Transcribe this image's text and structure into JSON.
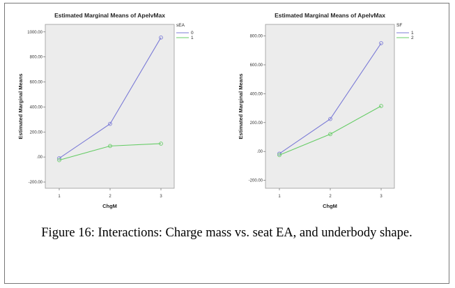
{
  "charts": [
    {
      "type": "line",
      "title": "Estimated Marginal Means of ApelvMax",
      "xlabel": "ChgM",
      "ylabel": "Estimated Marginal Means",
      "categories": [
        "1",
        "2",
        "3"
      ],
      "yticks": [
        "1000.00",
        "800.00",
        "600.00",
        "400.00",
        "200.00",
        ".00",
        "-200.00"
      ],
      "ylim": [
        -250,
        1060
      ],
      "legend_title": "sEA",
      "legend_position": "top-right",
      "grid": false,
      "series": [
        {
          "name": "0",
          "color": "#7b7bd6",
          "values": [
            -10,
            265,
            955
          ]
        },
        {
          "name": "1",
          "color": "#66cc66",
          "values": [
            -25,
            88,
            107
          ]
        }
      ]
    },
    {
      "type": "line",
      "title": "Estimated Marginal Means of ApelvMax",
      "xlabel": "ChgM",
      "ylabel": "Estimated Marginal Means",
      "categories": [
        "1",
        "2",
        "3"
      ],
      "yticks": [
        "800.00",
        "600.00",
        "400.00",
        "200.00",
        ".00",
        "-200.00"
      ],
      "ylim": [
        -255,
        880
      ],
      "legend_title": "SF",
      "legend_position": "top-right",
      "grid": false,
      "series": [
        {
          "name": "1",
          "color": "#7b7bd6",
          "values": [
            -15,
            225,
            750
          ]
        },
        {
          "name": "2",
          "color": "#66cc66",
          "values": [
            -25,
            120,
            315
          ]
        }
      ]
    }
  ],
  "caption": "Figure 16: Interactions: Charge mass vs. seat EA, and underbody shape."
}
